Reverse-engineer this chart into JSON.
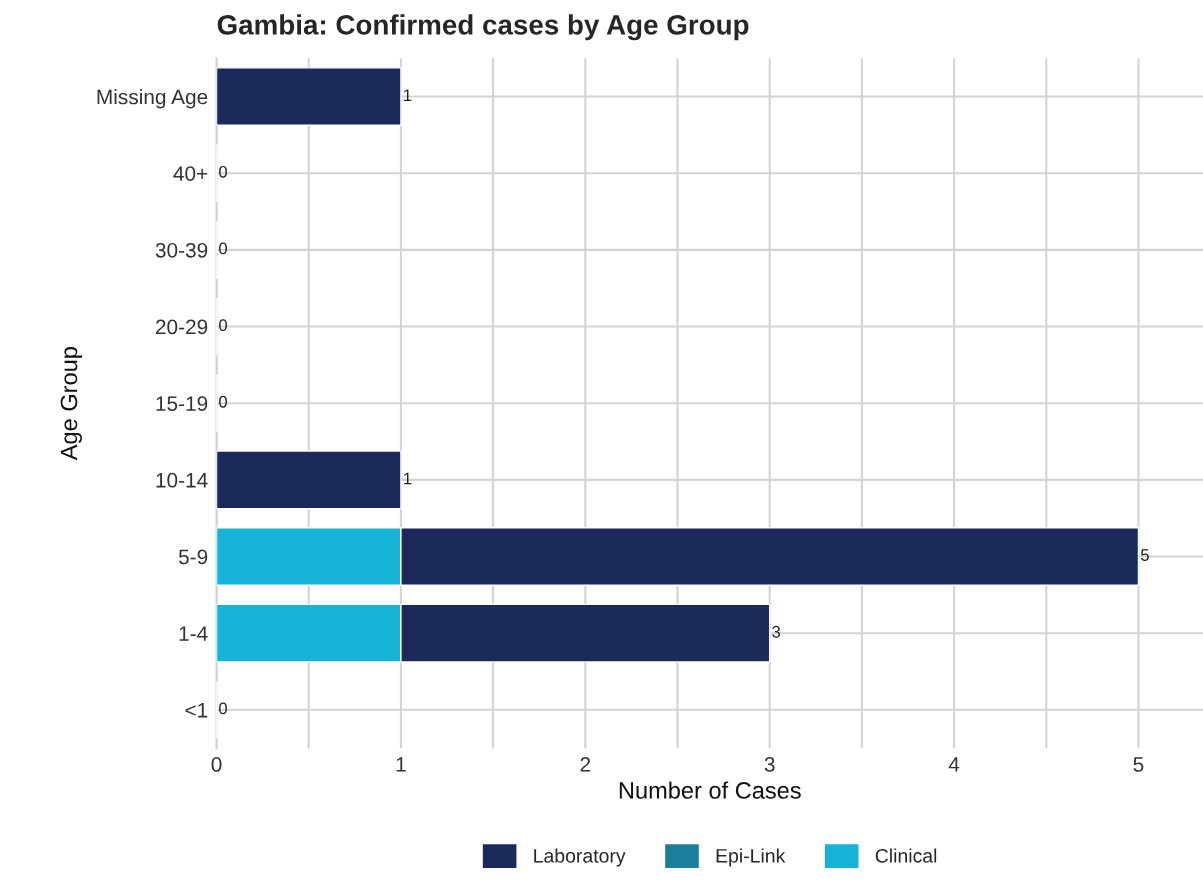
{
  "chart_data": {
    "type": "bar",
    "orientation": "horizontal",
    "stacked": true,
    "title": "Gambia: Confirmed cases by Age Group",
    "xlabel": "Number of Cases",
    "ylabel": "Age Group",
    "categories": [
      "Missing Age",
      "40+",
      "30-39",
      "20-29",
      "15-19",
      "10-14",
      "5-9",
      "1-4",
      "<1"
    ],
    "series": [
      {
        "name": "Clinical",
        "color": "#17b3d6",
        "values": [
          0,
          0,
          0,
          0,
          0,
          0,
          1,
          1,
          0
        ]
      },
      {
        "name": "Epi-Link",
        "color": "#1a7f9a",
        "values": [
          0,
          0,
          0,
          0,
          0,
          0,
          0,
          0,
          0
        ]
      },
      {
        "name": "Laboratory",
        "color": "#1b2a5a",
        "values": [
          1,
          0,
          0,
          0,
          0,
          1,
          4,
          2,
          0
        ]
      }
    ],
    "totals": [
      "1",
      "0",
      "0",
      "0",
      "0",
      "1",
      "5",
      "3",
      "0"
    ],
    "xlim": [
      0,
      5.35
    ],
    "xticks": [
      0,
      {
        "value": 0.5,
        "label": null
      },
      1,
      {
        "value": 1.5,
        "label": null
      },
      2,
      {
        "value": 2.5,
        "label": null
      },
      3,
      {
        "value": 3.5,
        "label": null
      },
      4,
      {
        "value": 4.5,
        "label": null
      },
      5
    ],
    "grid": true,
    "legend": "bottom"
  }
}
